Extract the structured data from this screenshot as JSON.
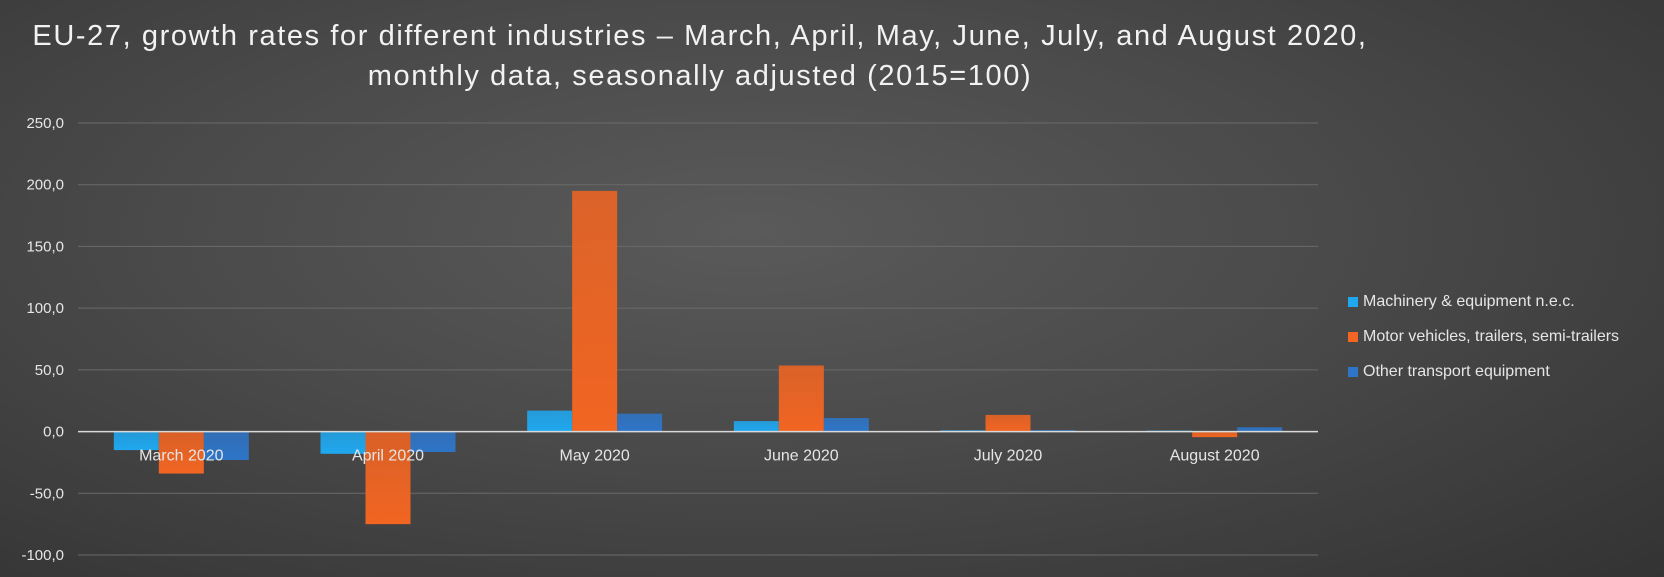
{
  "chart_data": {
    "type": "bar",
    "title": "EU-27, growth rates for different industries – March, April, May, June, July, and August 2020, monthly data, seasonally adjusted (2015=100)",
    "categories": [
      "March 2020",
      "April 2020",
      "May 2020",
      "June 2020",
      "July 2020",
      "August 2020"
    ],
    "series": [
      {
        "name": "Machinery & equipment n.e.c.",
        "color": "#1fa8f0",
        "values": [
          -15.0,
          -18.0,
          17.0,
          8.5,
          1.0,
          0.8
        ]
      },
      {
        "name": "Motor vehicles, trailers, semi-trailers",
        "color": "#f26522",
        "values": [
          -34.0,
          -75.0,
          195.0,
          53.5,
          13.5,
          -4.5
        ]
      },
      {
        "name": "Other transport equipment",
        "color": "#2e75c8",
        "values": [
          -23.0,
          -16.5,
          14.5,
          11.0,
          1.2,
          3.5
        ]
      }
    ],
    "yticks": [
      "250,0",
      "200,0",
      "150,0",
      "100,0",
      "50,0",
      "0,0",
      "-50,0",
      "-100,0"
    ],
    "ylim": [
      -100,
      250
    ],
    "grid": true,
    "legend_position": "right",
    "xlabel": "",
    "ylabel": ""
  }
}
